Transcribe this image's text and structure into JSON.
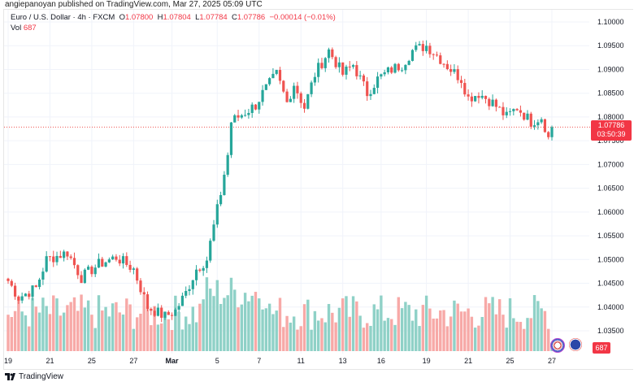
{
  "publisher_line": "angiepanoyan published on TradingView.com, Mar 27, 2025 05:09 UTC",
  "legend": {
    "symbol": "Euro / U.S. Dollar · 4h · FXCM",
    "open_label": "O",
    "open": "1.07800",
    "high_label": "H",
    "high": "1.07804",
    "low_label": "L",
    "low": "1.07784",
    "close_label": "C",
    "close": "1.07786",
    "change": "−0.00014 (−0.01%)",
    "vol_label": "Vol",
    "vol": "687"
  },
  "current_price": {
    "price": "1.07786",
    "countdown": "03:50:39"
  },
  "volume_badge": "687",
  "footer": {
    "brand": "TradingView"
  },
  "colors": {
    "up": "#26a69a",
    "down": "#ef5350",
    "vol_up": "#8fd1c7",
    "vol_down": "#f7a9a7",
    "badge": "#f23645"
  },
  "chart_data": {
    "type": "candlestick",
    "title": "Euro / U.S. Dollar · 4h · FXCM",
    "y_ticks": [
      "1.10000",
      "1.09500",
      "1.09000",
      "1.08500",
      "1.08000",
      "1.07500",
      "1.07000",
      "1.06500",
      "1.06000",
      "1.05500",
      "1.05000",
      "1.04500",
      "1.04000",
      "1.03500"
    ],
    "ylim": [
      1.0335,
      1.1015
    ],
    "x_ticks": [
      "19",
      "21",
      "25",
      "27",
      "Mar",
      "5",
      "7",
      "11",
      "13",
      "16",
      "19",
      "21",
      "25",
      "27"
    ],
    "x_tick_candle_index": [
      0,
      12,
      24,
      36,
      47,
      60,
      72,
      84,
      96,
      107,
      120,
      132,
      144,
      156
    ],
    "candle_count": 157,
    "close_keypoints": [
      [
        0,
        1.0455
      ],
      [
        3,
        1.042
      ],
      [
        8,
        1.044
      ],
      [
        11,
        1.05
      ],
      [
        17,
        1.0515
      ],
      [
        21,
        1.0462
      ],
      [
        26,
        1.049
      ],
      [
        31,
        1.0505
      ],
      [
        36,
        1.048
      ],
      [
        40,
        1.04
      ],
      [
        45,
        1.038
      ],
      [
        48,
        1.0392
      ],
      [
        51,
        1.043
      ],
      [
        54,
        1.048
      ],
      [
        57,
        1.05
      ],
      [
        59,
        1.057
      ],
      [
        61,
        1.064
      ],
      [
        63,
        1.072
      ],
      [
        64,
        1.079
      ],
      [
        68,
        1.081
      ],
      [
        71,
        1.0825
      ],
      [
        73,
        1.085
      ],
      [
        77,
        1.089
      ],
      [
        80,
        1.083
      ],
      [
        82,
        1.087
      ],
      [
        85,
        1.082
      ],
      [
        88,
        1.089
      ],
      [
        92,
        1.094
      ],
      [
        96,
        1.089
      ],
      [
        99,
        1.091
      ],
      [
        103,
        1.085
      ],
      [
        106,
        1.088
      ],
      [
        110,
        1.09
      ],
      [
        113,
        1.091
      ],
      [
        116,
        1.094
      ],
      [
        120,
        1.095
      ],
      [
        123,
        1.093
      ],
      [
        127,
        1.09
      ],
      [
        130,
        1.088
      ],
      [
        132,
        1.084
      ],
      [
        135,
        1.085
      ],
      [
        139,
        1.083
      ],
      [
        143,
        1.08
      ],
      [
        146,
        1.082
      ],
      [
        150,
        1.079
      ],
      [
        153,
        1.08
      ],
      [
        154,
        1.078
      ],
      [
        155,
        1.0755
      ],
      [
        156,
        1.07786
      ]
    ],
    "volume_range": [
      0,
      1
    ]
  }
}
